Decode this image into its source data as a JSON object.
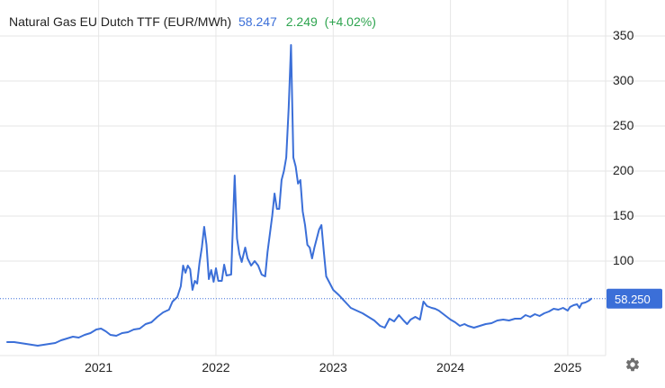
{
  "header": {
    "title": "Natural Gas EU Dutch TTF (EUR/MWh)",
    "price": "58.247",
    "change": "2.249",
    "change_pct": "(+4.02%)"
  },
  "last_price_label": "58.250",
  "colors": {
    "line": "#3b6fd8",
    "grid": "#e6e6e6",
    "up": "#2ea44f",
    "text": "#222222",
    "label_bg": "#3b6fd8"
  },
  "icons": {
    "settings": "gear-icon"
  },
  "chart_data": {
    "type": "line",
    "title": "Natural Gas EU Dutch TTF (EUR/MWh)",
    "xlabel": "",
    "ylabel": "",
    "y_axis_side": "right",
    "grid": true,
    "xlim": [
      2020.22,
      2025.3
    ],
    "ylim": [
      0,
      360
    ],
    "y_ticks": [
      100,
      150,
      200,
      250,
      300,
      350
    ],
    "x_ticks": [
      2021,
      2022,
      2023,
      2024,
      2025
    ],
    "x_tick_labels": [
      "2021",
      "2022",
      "2023",
      "2024",
      "2025"
    ],
    "last_value": 58.25,
    "series": [
      {
        "values": [
          [
            2020.22,
            10
          ],
          [
            2020.28,
            10
          ],
          [
            2020.33,
            9
          ],
          [
            2020.38,
            8
          ],
          [
            2020.43,
            7
          ],
          [
            2020.48,
            6
          ],
          [
            2020.53,
            7
          ],
          [
            2020.58,
            8
          ],
          [
            2020.63,
            9
          ],
          [
            2020.68,
            12
          ],
          [
            2020.73,
            14
          ],
          [
            2020.78,
            16
          ],
          [
            2020.83,
            15
          ],
          [
            2020.88,
            18
          ],
          [
            2020.93,
            20
          ],
          [
            2020.98,
            24
          ],
          [
            2021.02,
            25
          ],
          [
            2021.06,
            22
          ],
          [
            2021.1,
            18
          ],
          [
            2021.15,
            17
          ],
          [
            2021.2,
            20
          ],
          [
            2021.25,
            21
          ],
          [
            2021.3,
            24
          ],
          [
            2021.35,
            25
          ],
          [
            2021.4,
            30
          ],
          [
            2021.45,
            32
          ],
          [
            2021.5,
            38
          ],
          [
            2021.55,
            43
          ],
          [
            2021.6,
            46
          ],
          [
            2021.63,
            55
          ],
          [
            2021.67,
            60
          ],
          [
            2021.7,
            72
          ],
          [
            2021.72,
            95
          ],
          [
            2021.74,
            87
          ],
          [
            2021.76,
            95
          ],
          [
            2021.78,
            91
          ],
          [
            2021.8,
            68
          ],
          [
            2021.82,
            78
          ],
          [
            2021.84,
            75
          ],
          [
            2021.86,
            98
          ],
          [
            2021.88,
            115
          ],
          [
            2021.9,
            138
          ],
          [
            2021.92,
            118
          ],
          [
            2021.94,
            80
          ],
          [
            2021.96,
            90
          ],
          [
            2021.98,
            77
          ],
          [
            2022.0,
            92
          ],
          [
            2022.02,
            78
          ],
          [
            2022.05,
            78
          ],
          [
            2022.07,
            96
          ],
          [
            2022.09,
            84
          ],
          [
            2022.13,
            85
          ],
          [
            2022.16,
            195
          ],
          [
            2022.18,
            125
          ],
          [
            2022.2,
            108
          ],
          [
            2022.22,
            99
          ],
          [
            2022.25,
            115
          ],
          [
            2022.27,
            103
          ],
          [
            2022.3,
            95
          ],
          [
            2022.33,
            100
          ],
          [
            2022.36,
            95
          ],
          [
            2022.39,
            85
          ],
          [
            2022.42,
            83
          ],
          [
            2022.44,
            110
          ],
          [
            2022.46,
            130
          ],
          [
            2022.48,
            150
          ],
          [
            2022.5,
            175
          ],
          [
            2022.52,
            158
          ],
          [
            2022.54,
            158
          ],
          [
            2022.56,
            190
          ],
          [
            2022.58,
            200
          ],
          [
            2022.6,
            215
          ],
          [
            2022.62,
            270
          ],
          [
            2022.64,
            340
          ],
          [
            2022.66,
            215
          ],
          [
            2022.68,
            205
          ],
          [
            2022.7,
            186
          ],
          [
            2022.72,
            190
          ],
          [
            2022.74,
            155
          ],
          [
            2022.76,
            140
          ],
          [
            2022.78,
            118
          ],
          [
            2022.8,
            115
          ],
          [
            2022.82,
            103
          ],
          [
            2022.84,
            115
          ],
          [
            2022.86,
            125
          ],
          [
            2022.88,
            135
          ],
          [
            2022.9,
            140
          ],
          [
            2022.92,
            110
          ],
          [
            2022.94,
            83
          ],
          [
            2022.96,
            78
          ],
          [
            2023.0,
            68
          ],
          [
            2023.05,
            62
          ],
          [
            2023.1,
            55
          ],
          [
            2023.15,
            48
          ],
          [
            2023.2,
            45
          ],
          [
            2023.25,
            42
          ],
          [
            2023.3,
            38
          ],
          [
            2023.35,
            34
          ],
          [
            2023.4,
            28
          ],
          [
            2023.44,
            26
          ],
          [
            2023.48,
            36
          ],
          [
            2023.52,
            33
          ],
          [
            2023.56,
            40
          ],
          [
            2023.6,
            34
          ],
          [
            2023.63,
            30
          ],
          [
            2023.66,
            35
          ],
          [
            2023.7,
            38
          ],
          [
            2023.74,
            35
          ],
          [
            2023.77,
            55
          ],
          [
            2023.8,
            50
          ],
          [
            2023.84,
            48
          ],
          [
            2023.87,
            47
          ],
          [
            2023.9,
            45
          ],
          [
            2023.95,
            40
          ],
          [
            2024.0,
            35
          ],
          [
            2024.04,
            32
          ],
          [
            2024.08,
            28
          ],
          [
            2024.12,
            30
          ],
          [
            2024.15,
            28
          ],
          [
            2024.2,
            26
          ],
          [
            2024.25,
            28
          ],
          [
            2024.3,
            30
          ],
          [
            2024.35,
            31
          ],
          [
            2024.4,
            34
          ],
          [
            2024.45,
            35
          ],
          [
            2024.5,
            34
          ],
          [
            2024.55,
            36
          ],
          [
            2024.6,
            36
          ],
          [
            2024.64,
            40
          ],
          [
            2024.68,
            38
          ],
          [
            2024.72,
            41
          ],
          [
            2024.76,
            39
          ],
          [
            2024.8,
            42
          ],
          [
            2024.84,
            44
          ],
          [
            2024.88,
            47
          ],
          [
            2024.92,
            46
          ],
          [
            2024.96,
            48
          ],
          [
            2025.0,
            45
          ],
          [
            2025.02,
            49
          ],
          [
            2025.05,
            51
          ],
          [
            2025.08,
            52
          ],
          [
            2025.1,
            48
          ],
          [
            2025.12,
            53
          ],
          [
            2025.15,
            54
          ],
          [
            2025.18,
            56
          ],
          [
            2025.2,
            58.25
          ]
        ]
      }
    ]
  }
}
